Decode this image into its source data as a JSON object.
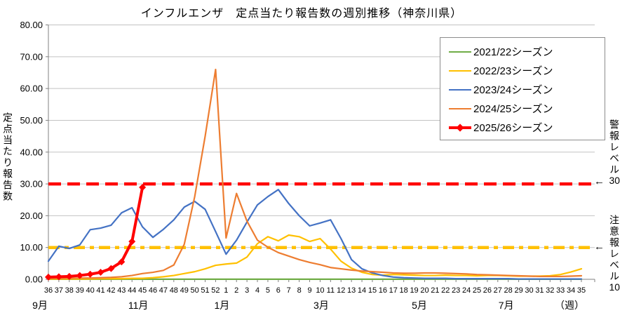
{
  "chart_data": {
    "type": "line",
    "title": "インフルエンザ　定点当たり報告数の週別推移（神奈川県）",
    "y_axis": {
      "label": "定点当たり報告数",
      "min": 0,
      "max": 80,
      "step": 10,
      "tick_labels": [
        "0.00",
        "10.00",
        "20.00",
        "30.00",
        "40.00",
        "50.00",
        "60.00",
        "70.00",
        "80.00"
      ]
    },
    "x_axis": {
      "unit_label": "（週）",
      "tick_labels": [
        "36",
        "37",
        "38",
        "39",
        "40",
        "41",
        "42",
        "43",
        "44",
        "45",
        "46",
        "47",
        "48",
        "49",
        "50",
        "51",
        "52",
        "1",
        "2",
        "3",
        "4",
        "5",
        "6",
        "7",
        "8",
        "9",
        "10",
        "11",
        "12",
        "13",
        "14",
        "15",
        "16",
        "17",
        "18",
        "19",
        "20",
        "21",
        "22",
        "23",
        "24",
        "25",
        "26",
        "27",
        "28",
        "29",
        "30",
        "31",
        "32",
        "33",
        "34",
        "35"
      ],
      "months": [
        {
          "label": "9月",
          "week_index": -0.8
        },
        {
          "label": "11月",
          "week_index": 8.6
        },
        {
          "label": "1月",
          "week_index": 16.6
        },
        {
          "label": "3月",
          "week_index": 26.1
        },
        {
          "label": "5月",
          "week_index": 35.5
        },
        {
          "label": "7月",
          "week_index": 43.8
        }
      ]
    },
    "thresholds": [
      {
        "label": "警報レベル30",
        "text": "警報レベル",
        "value_text": "30",
        "value": 30,
        "color": "#FF0000",
        "style": "dashed",
        "arrow": "←"
      },
      {
        "label": "注意報レベル10",
        "text": "注意報レベル",
        "value_text": "10",
        "value": 10,
        "color": "#FFC000",
        "style": "dash-dot",
        "arrow": "←"
      }
    ],
    "legend_position": "top-right",
    "grid": true,
    "series": [
      {
        "name": "2021/22シーズン",
        "color": "#70AD47",
        "line_width": 2.2,
        "marker": "none",
        "values": [
          0.02,
          0.02,
          0.02,
          0.02,
          0.02,
          0.02,
          0.02,
          0.02,
          0.02,
          0.02,
          0.02,
          0.02,
          0.02,
          0.02,
          0.02,
          0.02,
          0.02,
          0.02,
          0.02,
          0.02,
          0.02,
          0.02,
          0.02,
          0.02,
          0.02,
          0.02,
          0.02,
          0.02,
          0.02,
          0.02,
          0.02,
          0.02,
          0.02,
          0.02,
          0.02,
          0.02,
          0.02,
          0.02,
          0.02,
          0.02,
          0.02,
          0.02,
          0.02,
          0.02,
          0.02,
          0.02,
          0.02,
          0.02,
          0.02,
          0.02,
          0.02,
          0.02
        ]
      },
      {
        "name": "2022/23シーズン",
        "color": "#FFC000",
        "line_width": 2.2,
        "marker": "none",
        "values": [
          0.1,
          0.1,
          0.1,
          0.1,
          0.1,
          0.2,
          0.2,
          0.2,
          0.3,
          0.3,
          0.5,
          0.8,
          1.2,
          1.8,
          2.4,
          3.3,
          4.4,
          4.8,
          5.1,
          7.0,
          11.2,
          13.4,
          12.1,
          13.9,
          13.4,
          11.9,
          12.8,
          9.5,
          5.7,
          3.5,
          2.2,
          1.5,
          1.3,
          1.5,
          1.4,
          1.3,
          1.2,
          1.2,
          1.3,
          1.2,
          1.2,
          1.1,
          1.2,
          1.2,
          1.1,
          1.0,
          1.0,
          1.0,
          1.1,
          1.5,
          2.3,
          3.3
        ]
      },
      {
        "name": "2023/24シーズン",
        "color": "#4472C4",
        "line_width": 2.2,
        "marker": "none",
        "values": [
          5.7,
          10.4,
          9.7,
          10.8,
          15.6,
          16.1,
          17.0,
          20.9,
          22.5,
          16.5,
          13.2,
          15.7,
          18.7,
          22.7,
          24.5,
          22.0,
          15.0,
          7.9,
          12.3,
          18.0,
          23.4,
          26.0,
          28.2,
          23.8,
          20.0,
          16.8,
          17.7,
          18.7,
          12.8,
          6.2,
          3.3,
          2.0,
          1.2,
          0.7,
          0.5,
          0.4,
          0.3,
          0.3,
          0.3,
          0.2,
          0.2,
          0.2,
          0.2,
          0.2,
          0.2,
          0.1,
          0.1,
          0.1,
          0.1,
          0.1,
          0.1,
          0.1
        ]
      },
      {
        "name": "2024/25シーズン",
        "color": "#ED7D31",
        "line_width": 2.2,
        "marker": "none",
        "values": [
          0.3,
          0.3,
          0.3,
          0.4,
          0.4,
          0.5,
          0.6,
          0.8,
          1.2,
          1.8,
          2.2,
          2.8,
          4.5,
          11.0,
          26.0,
          45.0,
          66.0,
          13.0,
          27.0,
          18.3,
          12.3,
          10.1,
          8.4,
          7.3,
          6.2,
          5.3,
          4.6,
          3.7,
          3.3,
          2.9,
          2.6,
          2.4,
          2.2,
          2.0,
          1.9,
          1.9,
          2.0,
          2.0,
          1.9,
          1.8,
          1.7,
          1.5,
          1.4,
          1.3,
          1.2,
          1.1,
          1.0,
          0.9,
          0.9,
          0.9,
          1.0,
          1.1
        ]
      },
      {
        "name": "2025/26シーズン",
        "color": "#FF0000",
        "line_width": 4,
        "marker": "diamond",
        "values": [
          0.7,
          0.8,
          0.9,
          1.2,
          1.6,
          2.2,
          3.4,
          5.5,
          11.9,
          28.9
        ]
      }
    ]
  }
}
